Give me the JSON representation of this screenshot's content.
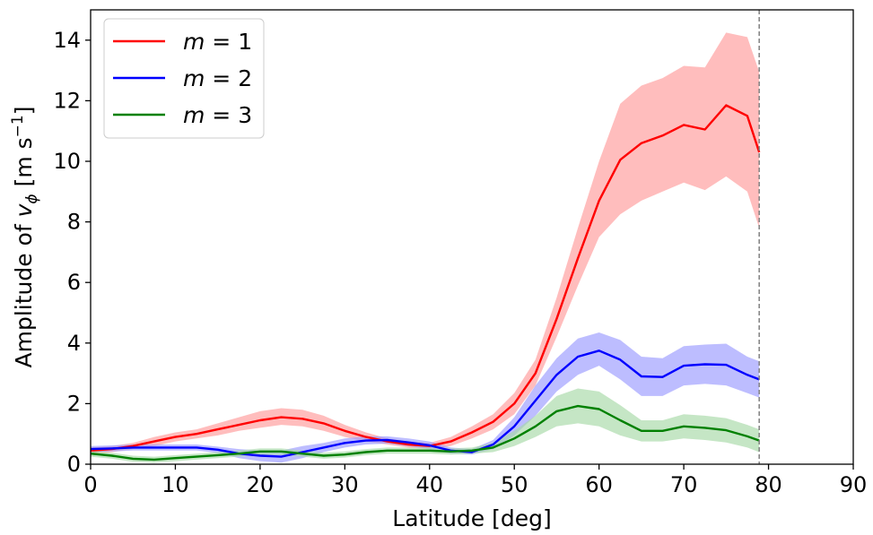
{
  "chart_data": {
    "type": "line",
    "xlabel": "Latitude [deg]",
    "ylabel_prefix": "Amplitude of ",
    "ylabel_var": "v",
    "ylabel_sub": "ϕ",
    "ylabel_unit_open": " [m s",
    "ylabel_unit_exp": "−1",
    "ylabel_unit_close": "]",
    "xlim": [
      0,
      90
    ],
    "ylim": [
      0,
      15
    ],
    "xticks": [
      0,
      10,
      20,
      30,
      40,
      50,
      60,
      70,
      80,
      90
    ],
    "yticks": [
      0,
      2,
      4,
      6,
      8,
      10,
      12,
      14
    ],
    "grid": false,
    "legend_position": "top-left",
    "vline": {
      "x": 78.9,
      "style": "dashed",
      "color": "#808080"
    },
    "x": [
      0,
      2.5,
      5,
      7.5,
      10,
      12.5,
      15,
      17.5,
      20,
      22.5,
      25,
      27.5,
      30,
      32.5,
      35,
      37.5,
      40,
      42.5,
      45,
      47.5,
      50,
      52.5,
      55,
      57.5,
      60,
      62.5,
      65,
      67.5,
      70,
      72.5,
      75,
      77.5,
      78.9
    ],
    "series": [
      {
        "label_var": "m",
        "label_rest": " = 1",
        "color": "#ff0000",
        "fill": "#ff9999",
        "values": [
          0.45,
          0.5,
          0.6,
          0.75,
          0.9,
          1.0,
          1.15,
          1.3,
          1.45,
          1.55,
          1.5,
          1.35,
          1.1,
          0.9,
          0.75,
          0.65,
          0.6,
          0.75,
          1.05,
          1.4,
          2.0,
          3.0,
          4.8,
          6.8,
          8.7,
          10.05,
          10.6,
          10.85,
          11.2,
          11.05,
          11.85,
          11.5,
          10.3
        ],
        "lower": [
          0.35,
          0.4,
          0.5,
          0.6,
          0.75,
          0.85,
          0.95,
          1.1,
          1.2,
          1.3,
          1.25,
          1.1,
          0.9,
          0.75,
          0.65,
          0.55,
          0.5,
          0.6,
          0.85,
          1.15,
          1.65,
          2.6,
          4.2,
          5.9,
          7.5,
          8.25,
          8.7,
          9.0,
          9.3,
          9.05,
          9.5,
          9.0,
          7.8
        ],
        "upper": [
          0.55,
          0.6,
          0.7,
          0.9,
          1.05,
          1.15,
          1.35,
          1.55,
          1.75,
          1.85,
          1.8,
          1.6,
          1.3,
          1.05,
          0.85,
          0.75,
          0.7,
          0.9,
          1.25,
          1.65,
          2.35,
          3.45,
          5.5,
          7.8,
          10.0,
          11.9,
          12.5,
          12.75,
          13.15,
          13.1,
          14.25,
          14.1,
          12.95
        ]
      },
      {
        "label_var": "m",
        "label_rest": " = 2",
        "color": "#0000ff",
        "fill": "#9999ff",
        "values": [
          0.5,
          0.52,
          0.55,
          0.55,
          0.55,
          0.55,
          0.48,
          0.35,
          0.28,
          0.25,
          0.4,
          0.55,
          0.7,
          0.78,
          0.8,
          0.72,
          0.62,
          0.45,
          0.4,
          0.65,
          1.25,
          2.1,
          2.95,
          3.55,
          3.75,
          3.45,
          2.9,
          2.88,
          3.25,
          3.3,
          3.28,
          2.95,
          2.8
        ],
        "lower": [
          0.4,
          0.42,
          0.45,
          0.45,
          0.45,
          0.45,
          0.38,
          0.2,
          0.1,
          0.05,
          0.2,
          0.4,
          0.55,
          0.65,
          0.68,
          0.6,
          0.5,
          0.35,
          0.32,
          0.5,
          0.95,
          1.6,
          2.4,
          2.95,
          3.25,
          2.8,
          2.25,
          2.25,
          2.6,
          2.65,
          2.6,
          2.35,
          2.2
        ],
        "upper": [
          0.6,
          0.62,
          0.65,
          0.65,
          0.65,
          0.65,
          0.58,
          0.5,
          0.45,
          0.45,
          0.6,
          0.7,
          0.85,
          0.92,
          0.92,
          0.85,
          0.75,
          0.55,
          0.5,
          0.8,
          1.55,
          2.6,
          3.5,
          4.15,
          4.35,
          4.1,
          3.55,
          3.5,
          3.9,
          3.95,
          3.98,
          3.55,
          3.4
        ]
      },
      {
        "label_var": "m",
        "label_rest": " = 3",
        "color": "#008000",
        "fill": "#a6d8a6",
        "values": [
          0.35,
          0.28,
          0.18,
          0.15,
          0.2,
          0.25,
          0.3,
          0.35,
          0.42,
          0.42,
          0.35,
          0.28,
          0.32,
          0.4,
          0.45,
          0.45,
          0.45,
          0.42,
          0.45,
          0.55,
          0.85,
          1.25,
          1.75,
          1.92,
          1.82,
          1.45,
          1.1,
          1.1,
          1.25,
          1.2,
          1.12,
          0.92,
          0.78
        ],
        "lower": [
          0.25,
          0.18,
          0.08,
          0.05,
          0.1,
          0.15,
          0.2,
          0.25,
          0.32,
          0.32,
          0.25,
          0.18,
          0.22,
          0.3,
          0.35,
          0.35,
          0.35,
          0.32,
          0.35,
          0.4,
          0.6,
          0.9,
          1.25,
          1.35,
          1.25,
          0.95,
          0.75,
          0.75,
          0.85,
          0.8,
          0.72,
          0.55,
          0.4
        ],
        "upper": [
          0.45,
          0.38,
          0.28,
          0.25,
          0.3,
          0.35,
          0.4,
          0.45,
          0.52,
          0.52,
          0.45,
          0.38,
          0.42,
          0.5,
          0.55,
          0.55,
          0.55,
          0.52,
          0.55,
          0.7,
          1.1,
          1.6,
          2.25,
          2.5,
          2.4,
          1.95,
          1.45,
          1.45,
          1.65,
          1.6,
          1.52,
          1.3,
          1.15
        ]
      }
    ]
  }
}
